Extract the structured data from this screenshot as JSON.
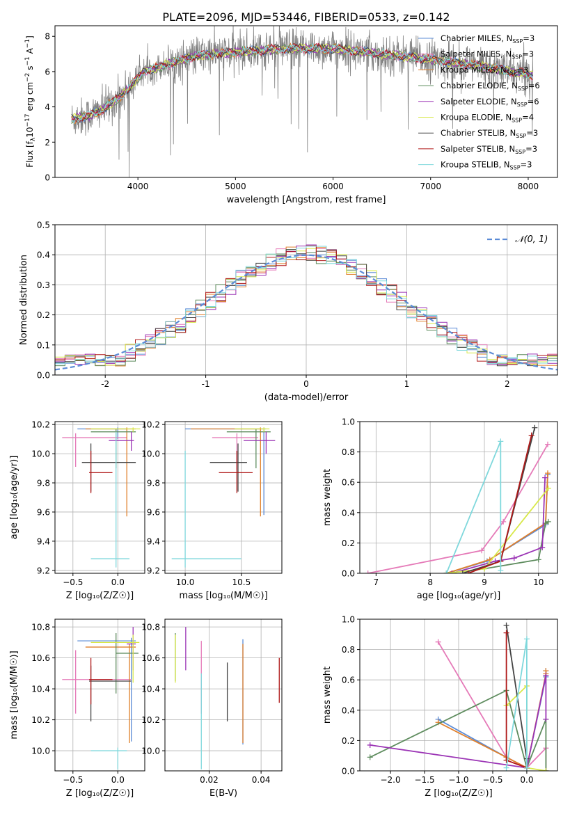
{
  "figure": {
    "title": "PLATE=2096, MJD=53446, FIBERID=0533, z=0.142"
  },
  "models": [
    {
      "name": "Chabrier MILES",
      "nssp": "3",
      "color": "#5b8bd6"
    },
    {
      "name": "Salpeter MILES",
      "nssp": "3",
      "color": "#e57ab8"
    },
    {
      "name": "Kroupa MILES",
      "nssp": "3",
      "color": "#e0802c"
    },
    {
      "name": "Chabrier ELODIE",
      "nssp": "6",
      "color": "#5e8c5e"
    },
    {
      "name": "Salpeter ELODIE",
      "nssp": "6",
      "color": "#9b34b5"
    },
    {
      "name": "Kroupa ELODIE",
      "nssp": "4",
      "color": "#d8e84a"
    },
    {
      "name": "Chabrier STELIB",
      "nssp": "3",
      "color": "#444444"
    },
    {
      "name": "Salpeter STELIB",
      "nssp": "3",
      "color": "#b01919"
    },
    {
      "name": "Kroupa STELIB",
      "nssp": "3",
      "color": "#7fd8dc"
    }
  ],
  "chart_data": [
    {
      "id": "spectrum",
      "type": "line",
      "xlabel": "wavelength [Angstrom, rest frame]",
      "ylabel": "Flux [f",
      "ylabel_parts": {
        "f_sub": "λ",
        "mid": "10",
        "exp1": "−17",
        "unit": " erg cm",
        "exp2": "−2",
        "s": " s",
        "exp3": "−1",
        "A": " A",
        "exp4": "−1",
        "close": "]"
      },
      "xlim": [
        3150,
        8300
      ],
      "ylim": [
        0,
        8.6
      ],
      "xticks": [
        4000,
        5000,
        6000,
        7000,
        8000
      ],
      "yticks": [
        0,
        2,
        4,
        6,
        8
      ],
      "data_color": "#808080",
      "x_range": [
        3320,
        8050
      ],
      "continuum_points": [
        [
          3320,
          3.3
        ],
        [
          3500,
          3.5
        ],
        [
          3650,
          3.9
        ],
        [
          3800,
          4.5
        ],
        [
          3950,
          5.3
        ],
        [
          4050,
          6.0
        ],
        [
          4300,
          6.4
        ],
        [
          4600,
          6.9
        ],
        [
          5000,
          7.1
        ],
        [
          5500,
          7.3
        ],
        [
          6000,
          7.3
        ],
        [
          6500,
          7.0
        ],
        [
          7000,
          6.7
        ],
        [
          7400,
          6.4
        ],
        [
          8050,
          5.8
        ]
      ]
    },
    {
      "id": "residual-hist",
      "type": "line",
      "xlabel": "(data-model)/error",
      "ylabel": "Normed distribution",
      "xlim": [
        -2.5,
        2.5
      ],
      "ylim": [
        0,
        0.5
      ],
      "xticks": [
        -2,
        -1,
        0,
        1,
        2
      ],
      "yticks": [
        0,
        0.1,
        0.2,
        0.3,
        0.4,
        0.5
      ],
      "legend": "𝒩(0, 1)",
      "gauss_color": "#5b8bd6",
      "bin_width": 0.1
    },
    {
      "id": "age-vs-Z",
      "type": "scatter",
      "xlabel": "Z [log₁₀(Z/Z☉)]",
      "ylabel": "age  [log₁₀(age/yr)]",
      "xlim": [
        -0.7,
        0.3
      ],
      "ylim": [
        9.18,
        10.22
      ],
      "xticks": [
        -0.5,
        0.0
      ],
      "yticks": [
        9.2,
        9.4,
        9.6,
        9.8,
        10.0,
        10.2
      ],
      "points": [
        {
          "x": 0.0,
          "y": 10.17,
          "xlo": -0.45,
          "xhi": 0.1,
          "ylo": 10.1,
          "yhi": 10.18
        },
        {
          "x": -0.47,
          "y": 10.11,
          "xlo": -0.62,
          "xhi": 0.1,
          "ylo": 9.91,
          "yhi": 10.14
        },
        {
          "x": 0.1,
          "y": 10.17,
          "xlo": -0.36,
          "xhi": 0.2,
          "ylo": 9.57,
          "yhi": 10.18
        },
        {
          "x": -0.02,
          "y": 10.15,
          "xlo": -0.3,
          "xhi": 0.2,
          "ylo": 9.9,
          "yhi": 10.17
        },
        {
          "x": 0.15,
          "y": 10.09,
          "xlo": -0.1,
          "xhi": 0.18,
          "ylo": 10.02,
          "yhi": 10.15
        },
        {
          "x": 0.17,
          "y": 10.17,
          "xlo": -0.3,
          "xhi": 0.25,
          "ylo": 10.15,
          "yhi": 10.18
        },
        {
          "x": -0.3,
          "y": 9.94,
          "xlo": -0.4,
          "xhi": 0.2,
          "ylo": 9.74,
          "yhi": 10.07
        },
        {
          "x": -0.3,
          "y": 9.87,
          "xlo": -0.32,
          "xhi": -0.06,
          "ylo": 9.73,
          "yhi": 10.02
        },
        {
          "x": -0.02,
          "y": 9.28,
          "xlo": -0.3,
          "xhi": 0.13,
          "ylo": 9.22,
          "yhi": 10.15
        }
      ]
    },
    {
      "id": "age-vs-mass",
      "type": "scatter",
      "xlabel": "mass [log₁₀(M/M☉)]",
      "ylabel": "",
      "xlim": [
        9.82,
        10.86
      ],
      "ylim": [
        9.18,
        10.22
      ],
      "xticks": [
        10.0,
        10.5
      ],
      "yticks": [
        9.2,
        9.4,
        9.6,
        9.8,
        10.0,
        10.2
      ],
      "points": [
        {
          "x": 10.7,
          "y": 10.17,
          "xlo": 10.0,
          "xhi": 10.72,
          "ylo": 9.58,
          "yhi": 10.18
        },
        {
          "x": 10.46,
          "y": 10.11,
          "xlo": 10.24,
          "xhi": 10.65,
          "ylo": 9.89,
          "yhi": 10.14
        },
        {
          "x": 10.67,
          "y": 10.17,
          "xlo": 10.05,
          "xhi": 10.69,
          "ylo": 9.57,
          "yhi": 10.18
        },
        {
          "x": 10.63,
          "y": 10.15,
          "xlo": 10.37,
          "xhi": 10.76,
          "ylo": 9.9,
          "yhi": 10.17
        },
        {
          "x": 10.72,
          "y": 10.09,
          "xlo": 10.52,
          "xhi": 10.8,
          "ylo": 10.0,
          "yhi": 10.15
        },
        {
          "x": 10.7,
          "y": 10.17,
          "xlo": 10.44,
          "xhi": 10.75,
          "ylo": 10.15,
          "yhi": 10.18
        },
        {
          "x": 10.47,
          "y": 9.94,
          "xlo": 10.22,
          "xhi": 10.55,
          "ylo": 9.74,
          "yhi": 10.07
        },
        {
          "x": 10.46,
          "y": 9.87,
          "xlo": 10.3,
          "xhi": 10.6,
          "ylo": 9.73,
          "yhi": 10.02
        },
        {
          "x": 10.0,
          "y": 9.28,
          "xlo": 9.88,
          "xhi": 10.5,
          "ylo": 9.22,
          "yhi": 10.02
        }
      ]
    },
    {
      "id": "weight-vs-age",
      "type": "line",
      "xlabel": "age  [log₁₀(age/yr)]",
      "ylabel": "mass weight",
      "xlim": [
        6.7,
        10.35
      ],
      "ylim": [
        0,
        1
      ],
      "xticks": [
        7,
        8,
        9,
        10
      ],
      "yticks": [
        0.0,
        0.2,
        0.4,
        0.6,
        0.8,
        1.0
      ],
      "series": [
        {
          "points": [
            [
              8.3,
              0.0
            ],
            [
              9.05,
              0.08
            ],
            [
              10.13,
              0.32
            ],
            [
              10.17,
              0.65
            ]
          ]
        },
        {
          "points": [
            [
              6.85,
              0.0
            ],
            [
              8.95,
              0.15
            ],
            [
              9.35,
              0.34
            ],
            [
              10.17,
              0.85
            ]
          ]
        },
        {
          "points": [
            [
              8.3,
              0.0
            ],
            [
              9.1,
              0.09
            ],
            [
              10.13,
              0.33
            ],
            [
              10.17,
              0.66
            ]
          ]
        },
        {
          "points": [
            [
              8.3,
              0.0
            ],
            [
              9.0,
              0.03
            ],
            [
              10.0,
              0.09
            ],
            [
              10.13,
              0.33
            ],
            [
              10.18,
              0.34
            ]
          ]
        },
        {
          "points": [
            [
              8.4,
              0.0
            ],
            [
              9.2,
              0.08
            ],
            [
              9.55,
              0.1
            ],
            [
              10.07,
              0.17
            ],
            [
              10.12,
              0.63
            ]
          ]
        },
        {
          "points": [
            [
              8.3,
              0.0
            ],
            [
              9.0,
              0.03
            ],
            [
              10.18,
              0.56
            ]
          ]
        },
        {
          "points": [
            [
              8.6,
              0.0
            ],
            [
              9.3,
              0.08
            ],
            [
              9.93,
              0.96
            ]
          ]
        },
        {
          "points": [
            [
              8.7,
              0.0
            ],
            [
              9.3,
              0.08
            ],
            [
              9.87,
              0.91
            ]
          ]
        },
        {
          "points": [
            [
              8.3,
              0.0
            ],
            [
              9.3,
              0.87
            ],
            [
              9.3,
              0.02
            ]
          ]
        }
      ]
    },
    {
      "id": "mass-vs-Z",
      "type": "scatter",
      "xlabel": "Z [log₁₀(Z/Z☉)]",
      "ylabel": "mass [log₁₀(M/M☉)]",
      "xlim": [
        -0.7,
        0.3
      ],
      "ylim": [
        9.87,
        10.85
      ],
      "xticks": [
        -0.5,
        0.0
      ],
      "yticks": [
        10.0,
        10.2,
        10.4,
        10.6,
        10.8
      ],
      "points": [
        {
          "x": 0.15,
          "y": 10.71,
          "xlo": -0.45,
          "xhi": 0.2,
          "ylo": 10.06,
          "yhi": 10.73
        },
        {
          "x": -0.47,
          "y": 10.46,
          "xlo": -0.62,
          "xhi": 0.15,
          "ylo": 10.24,
          "yhi": 10.65
        },
        {
          "x": 0.13,
          "y": 10.67,
          "xlo": -0.36,
          "xhi": 0.2,
          "ylo": 10.05,
          "yhi": 10.69
        },
        {
          "x": -0.02,
          "y": 10.63,
          "xlo": -0.02,
          "xhi": 0.23,
          "ylo": 10.37,
          "yhi": 10.76
        },
        {
          "x": 0.17,
          "y": 10.69,
          "xlo": 0.1,
          "xhi": 0.2,
          "ylo": 10.52,
          "yhi": 10.8
        },
        {
          "x": 0.17,
          "y": 10.7,
          "xlo": -0.3,
          "xhi": 0.24,
          "ylo": 10.44,
          "yhi": 10.75
        },
        {
          "x": -0.3,
          "y": 10.45,
          "xlo": -0.32,
          "xhi": 0.15,
          "ylo": 10.19,
          "yhi": 10.55
        },
        {
          "x": -0.3,
          "y": 10.46,
          "xlo": -0.32,
          "xhi": -0.06,
          "ylo": 10.3,
          "yhi": 10.6
        },
        {
          "x": 0.0,
          "y": 10.0,
          "xlo": -0.3,
          "xhi": 0.1,
          "ylo": 9.88,
          "yhi": 10.02
        }
      ]
    },
    {
      "id": "mass-vs-ebv",
      "type": "scatter",
      "xlabel": "E(B-V)",
      "ylabel": "",
      "xlim": [
        0.003,
        0.048
      ],
      "ylim": [
        9.87,
        10.85
      ],
      "xticks": [
        0.02,
        0.04
      ],
      "yticks": [
        10.0,
        10.2,
        10.4,
        10.6,
        10.8
      ],
      "points": [
        {
          "x": 0.033,
          "y": 10.7,
          "ylo": 10.04,
          "yhi": 10.72
        },
        {
          "x": 0.017,
          "y": 10.46,
          "ylo": 10.24,
          "yhi": 10.71
        },
        {
          "x": 0.033,
          "y": 10.67,
          "ylo": 10.05,
          "yhi": 10.69
        },
        {
          "x": 0.007,
          "y": 10.63,
          "ylo": 10.45,
          "yhi": 10.76
        },
        {
          "x": 0.011,
          "y": 10.69,
          "ylo": 10.52,
          "yhi": 10.8
        },
        {
          "x": 0.007,
          "y": 10.7,
          "ylo": 10.44,
          "yhi": 10.75
        },
        {
          "x": 0.027,
          "y": 10.45,
          "ylo": 10.19,
          "yhi": 10.57
        },
        {
          "x": 0.047,
          "y": 10.46,
          "ylo": 10.31,
          "yhi": 10.6
        },
        {
          "x": 0.017,
          "y": 10.0,
          "ylo": 9.88,
          "yhi": 10.5
        }
      ]
    },
    {
      "id": "weight-vs-Z",
      "type": "line",
      "xlabel": "Z [log₁₀(Z/Z☉)]",
      "ylabel": "mass weight",
      "xlim": [
        -2.45,
        0.45
      ],
      "ylim": [
        0,
        1
      ],
      "xticks": [
        -2.0,
        -1.5,
        -1.0,
        -0.5,
        0.0
      ],
      "yticks": [
        0.0,
        0.2,
        0.4,
        0.6,
        0.8,
        1.0
      ],
      "series": [
        {
          "points": [
            [
              -1.3,
              0.34
            ],
            [
              -0.3,
              0.09
            ],
            [
              0.0,
              0.02
            ],
            [
              0.28,
              0.62
            ],
            [
              0.28,
              0.66
            ]
          ]
        },
        {
          "points": [
            [
              -1.3,
              0.85
            ],
            [
              -0.3,
              0.09
            ],
            [
              0.0,
              0.02
            ],
            [
              0.28,
              0.15
            ],
            [
              0.28,
              0.0
            ]
          ]
        },
        {
          "points": [
            [
              -1.3,
              0.32
            ],
            [
              -0.3,
              0.09
            ],
            [
              0.0,
              0.02
            ],
            [
              0.28,
              0.64
            ],
            [
              0.28,
              0.66
            ]
          ]
        },
        {
          "points": [
            [
              -2.3,
              0.09
            ],
            [
              -0.3,
              0.53
            ],
            [
              0.0,
              0.02
            ],
            [
              0.28,
              0.34
            ],
            [
              0.28,
              0.0
            ]
          ]
        },
        {
          "points": [
            [
              -2.3,
              0.17
            ],
            [
              0.0,
              0.02
            ],
            [
              0.28,
              0.63
            ],
            [
              0.28,
              0.34
            ]
          ]
        },
        {
          "points": [
            [
              -0.3,
              0.43
            ],
            [
              0.0,
              0.56
            ],
            [
              0.0,
              0.02
            ],
            [
              0.28,
              0.0
            ]
          ]
        },
        {
          "points": [
            [
              -0.3,
              0.96
            ],
            [
              0.0,
              0.08
            ],
            [
              0.0,
              0.02
            ]
          ]
        },
        {
          "points": [
            [
              -0.3,
              0.91
            ],
            [
              -0.3,
              0.07
            ],
            [
              0.0,
              0.02
            ]
          ]
        },
        {
          "points": [
            [
              -0.3,
              0.02
            ],
            [
              0.0,
              0.87
            ],
            [
              0.0,
              0.02
            ]
          ]
        }
      ]
    }
  ]
}
